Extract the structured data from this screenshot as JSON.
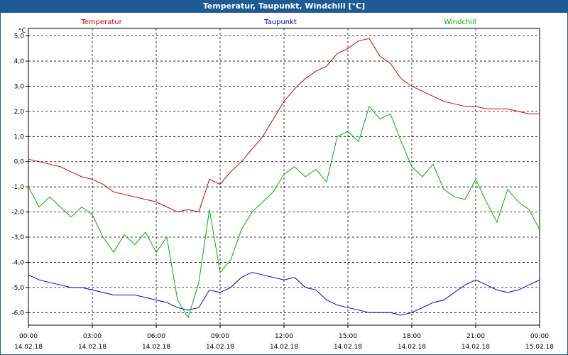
{
  "title": "Temperatur, Taupunkt, Windchill [°C]",
  "chart_data": {
    "type": "line",
    "yunit": "°C",
    "ylim": [
      -6.5,
      5.3
    ],
    "yticks": [
      5,
      4,
      3,
      2,
      1,
      0,
      -1,
      -2,
      -3,
      -4,
      -5,
      -6
    ],
    "ytick_labels": [
      "5,0",
      "4,0",
      "3,0",
      "2,0",
      "1,0",
      "0,0",
      "-1,0",
      "-2,0",
      "-3,0",
      "-4,0",
      "-5,0",
      "-6,0"
    ],
    "xlim": [
      0,
      24
    ],
    "xticks": [
      0,
      3,
      6,
      9,
      12,
      15,
      18,
      21,
      24
    ],
    "xtick_time": [
      "00:00",
      "03:00",
      "06:00",
      "09:00",
      "12:00",
      "15:00",
      "18:00",
      "21:00",
      "00:00"
    ],
    "xtick_date": [
      "14.02.18",
      "14.02.18",
      "14.02.18",
      "14.02.18",
      "14.02.18",
      "14.02.18",
      "14.02.18",
      "14.02.18",
      "15.02.18"
    ],
    "grid": true,
    "series": [
      {
        "name": "Temperatur",
        "color": "#d00000",
        "x": [
          0,
          0.5,
          1,
          1.5,
          2,
          2.5,
          3,
          3.5,
          4,
          4.5,
          5,
          5.5,
          6,
          6.5,
          7,
          7.5,
          8,
          8.5,
          9,
          9.5,
          10,
          10.5,
          11,
          11.5,
          12,
          12.5,
          13,
          13.5,
          14,
          14.5,
          15,
          15.5,
          16,
          16.5,
          17,
          17.5,
          18,
          18.5,
          19,
          19.5,
          20,
          20.5,
          21,
          21.5,
          22,
          22.5,
          23,
          23.5,
          24
        ],
        "values": [
          0.1,
          0.0,
          -0.1,
          -0.2,
          -0.4,
          -0.6,
          -0.7,
          -0.9,
          -1.2,
          -1.3,
          -1.4,
          -1.5,
          -1.6,
          -1.8,
          -2.0,
          -1.9,
          -2.0,
          -0.7,
          -0.9,
          -0.4,
          0.0,
          0.5,
          1.0,
          1.7,
          2.4,
          2.9,
          3.3,
          3.6,
          3.8,
          4.3,
          4.5,
          4.8,
          4.9,
          4.2,
          3.9,
          3.3,
          3.0,
          2.8,
          2.6,
          2.4,
          2.3,
          2.2,
          2.2,
          2.1,
          2.1,
          2.1,
          2.0,
          1.9,
          1.9
        ]
      },
      {
        "name": "Taupunkt",
        "color": "#0000c0",
        "x": [
          0,
          0.5,
          1,
          1.5,
          2,
          2.5,
          3,
          3.5,
          4,
          4.5,
          5,
          5.5,
          6,
          6.5,
          7,
          7.5,
          8,
          8.5,
          9,
          9.5,
          10,
          10.5,
          11,
          11.5,
          12,
          12.5,
          13,
          13.5,
          14,
          14.5,
          15,
          15.5,
          16,
          16.5,
          17,
          17.5,
          18,
          18.5,
          19,
          19.5,
          20,
          20.5,
          21,
          21.5,
          22,
          22.5,
          23,
          23.5,
          24
        ],
        "values": [
          -4.5,
          -4.7,
          -4.8,
          -4.9,
          -5.0,
          -5.0,
          -5.1,
          -5.2,
          -5.3,
          -5.3,
          -5.3,
          -5.4,
          -5.5,
          -5.6,
          -5.8,
          -5.9,
          -5.8,
          -5.1,
          -5.2,
          -5.0,
          -4.6,
          -4.4,
          -4.5,
          -4.6,
          -4.7,
          -4.6,
          -5.0,
          -5.1,
          -5.5,
          -5.7,
          -5.8,
          -5.9,
          -6.0,
          -6.0,
          -6.0,
          -6.1,
          -6.0,
          -5.8,
          -5.6,
          -5.5,
          -5.2,
          -4.9,
          -4.7,
          -4.9,
          -5.1,
          -5.2,
          -5.1,
          -4.9,
          -4.7
        ]
      },
      {
        "name": "Windchill",
        "color": "#00b000",
        "x": [
          0,
          0.5,
          1,
          1.5,
          2,
          2.5,
          3,
          3.5,
          4,
          4.5,
          5,
          5.5,
          6,
          6.5,
          7,
          7.5,
          8,
          8.5,
          9,
          9.5,
          10,
          10.5,
          11,
          11.5,
          12,
          12.5,
          13,
          13.5,
          14,
          14.5,
          15,
          15.5,
          16,
          16.5,
          17,
          17.5,
          18,
          18.5,
          19,
          19.5,
          20,
          20.5,
          21,
          21.5,
          22,
          22.5,
          23,
          23.5,
          24
        ],
        "values": [
          -1.0,
          -1.8,
          -1.4,
          -1.8,
          -2.2,
          -1.8,
          -2.1,
          -3.0,
          -3.6,
          -2.9,
          -3.3,
          -2.8,
          -3.6,
          -3.0,
          -5.5,
          -6.2,
          -4.8,
          -1.9,
          -4.4,
          -3.9,
          -2.7,
          -2.0,
          -1.6,
          -1.2,
          -0.5,
          -0.2,
          -0.6,
          -0.3,
          -0.8,
          1.0,
          1.2,
          0.8,
          2.2,
          1.7,
          1.9,
          0.8,
          -0.2,
          -0.6,
          -0.1,
          -1.1,
          -1.4,
          -1.5,
          -0.7,
          -1.6,
          -2.4,
          -1.1,
          -1.6,
          -1.9,
          -2.7
        ]
      }
    ]
  }
}
